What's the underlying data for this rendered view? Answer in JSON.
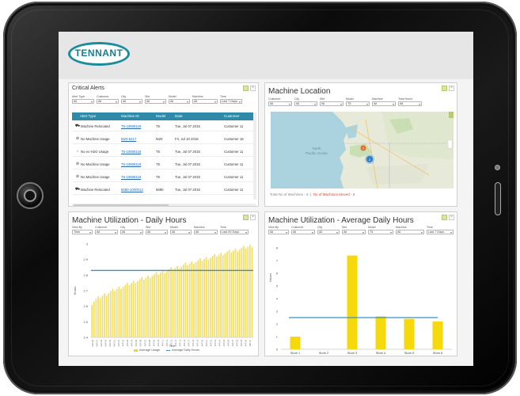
{
  "logo": {
    "text": "TENNANT"
  },
  "colors": {
    "brand": "#1a8c9c",
    "table_header": "#2e8aa7",
    "bar": "#f5d90a",
    "avg_line": "#3f8fbf",
    "link": "#2a6bb0",
    "alert_red": "#d24a3a"
  },
  "alerts": {
    "title": "Critical Alerts",
    "filters": [
      {
        "label": "Alert Type",
        "value": "All"
      },
      {
        "label": "Customer",
        "value": "All"
      },
      {
        "label": "City",
        "value": "All"
      },
      {
        "label": "Site",
        "value": "All"
      },
      {
        "label": "Model",
        "value": "All"
      },
      {
        "label": "Machine",
        "value": "All"
      },
      {
        "label": "Time",
        "value": "Last 7 Days"
      }
    ],
    "columns": [
      "Alert Type",
      "Machine ID",
      "Model",
      "Date",
      "Customer"
    ],
    "rows": [
      {
        "icon": "truck-icon",
        "glyph": "⛟",
        "type": "Machine Relocated",
        "id": "T5-10808119",
        "model": "T5",
        "date": "Tue, Jul 07 2015",
        "customer": "Customer 11"
      },
      {
        "icon": "no-usage-icon",
        "glyph": "⊘",
        "type": "No Machine Usage",
        "id": "M20-6417",
        "model": "M20",
        "date": "Fri, Jul 10 2015",
        "customer": "Customer 18"
      },
      {
        "icon": "arrow-down-icon",
        "glyph": "↓",
        "type": "No ec-H2O Usage",
        "id": "T5-10808119",
        "model": "T5",
        "date": "Tue, Jul 07 2015",
        "customer": "Customer 11"
      },
      {
        "icon": "no-usage-icon",
        "glyph": "⊘",
        "type": "No Machine Usage",
        "id": "T5-10808119",
        "model": "T5",
        "date": "Tue, Jul 07 2015",
        "customer": "Customer 11"
      },
      {
        "icon": "no-usage-icon",
        "glyph": "⊘",
        "type": "No Machine Usage",
        "id": "T5-10808119",
        "model": "T5",
        "date": "Tue, Jul 07 2015",
        "customer": "Customer 11"
      },
      {
        "icon": "truck-icon",
        "glyph": "⛟",
        "type": "Machine Relocated",
        "id": "5680-1000013",
        "model": "5680",
        "date": "Tue, Jul 07 2015",
        "customer": "Customer 11"
      }
    ]
  },
  "location": {
    "title": "Machine Location",
    "filters": [
      {
        "label": "Customer",
        "value": "All"
      },
      {
        "label": "City",
        "value": "All"
      },
      {
        "label": "Site",
        "value": "All"
      },
      {
        "label": "Model",
        "value": "T5"
      },
      {
        "label": "Machine",
        "value": "All"
      },
      {
        "label": "Total Hours",
        "value": "All"
      }
    ],
    "map_labels": {
      "ocean": "North\nPacific Ocean",
      "cluster_big": "3",
      "cluster_small": "5"
    },
    "footer_total": "Total No of Machines - 8",
    "footer_moved": "No of Machines Moved - 3"
  },
  "util_daily": {
    "title": "Machine Utilization - Daily Hours",
    "filters": [
      {
        "label": "View By",
        "value": "Time"
      },
      {
        "label": "Customer",
        "value": "All"
      },
      {
        "label": "City",
        "value": "All"
      },
      {
        "label": "Site",
        "value": "All"
      },
      {
        "label": "Model",
        "value": "All"
      },
      {
        "label": "Machine",
        "value": "All"
      },
      {
        "label": "Time",
        "value": "Last 90 Days"
      }
    ],
    "legend": [
      "Average Usage",
      "Average Daily Hours"
    ]
  },
  "util_avg": {
    "title": "Machine Utilization - Average Daily Hours",
    "filters": [
      {
        "label": "View By",
        "value": "All"
      },
      {
        "label": "Customer",
        "value": "All"
      },
      {
        "label": "City",
        "value": "All"
      },
      {
        "label": "Site",
        "value": "All"
      },
      {
        "label": "Model",
        "value": "T5"
      },
      {
        "label": "Machine",
        "value": "All"
      },
      {
        "label": "Time",
        "value": "Last 7 Days"
      }
    ]
  },
  "chart_data": [
    {
      "type": "bar",
      "title": "Machine Utilization - Daily Hours",
      "xlabel": "Time",
      "ylabel": "Hours",
      "ylim": [
        2.4,
        3.0
      ],
      "yticks": [
        2.4,
        2.5,
        2.6,
        2.7,
        2.8,
        2.9,
        3
      ],
      "x_tick_labels": [
        "MAR 26",
        "MAR 27",
        "MAR 28",
        "MAR 29",
        "MAR 30",
        "MAR 31",
        "APR 01",
        "APR 02",
        "APR 03",
        "APR 04",
        "APR 05",
        "APR 06",
        "APR 07",
        "APR 08",
        "APR 09",
        "APR 10",
        "APR 11",
        "APR 12",
        "APR 13",
        "APR 14",
        "APR 15",
        "APR 16",
        "APR 17",
        "APR 18",
        "APR 19",
        "APR 20",
        "APR 21",
        "APR 22",
        "APR 23",
        "APR 24",
        "APR 25",
        "APR 26",
        "APR 27",
        "APR 28",
        "APR 29",
        "APR 30",
        "MAY 01"
      ],
      "series": [
        {
          "name": "Average Usage",
          "start": 2.62,
          "end": 2.99,
          "count": 78
        },
        {
          "name": "Average Daily Hours",
          "value": 2.83
        }
      ]
    },
    {
      "type": "bar",
      "title": "Machine Utilization - Average Daily Hours",
      "ylabel": "Hours",
      "ylim": [
        0,
        8
      ],
      "yticks": [
        0,
        1,
        2,
        3,
        4,
        5,
        6,
        7,
        8
      ],
      "categories": [
        "Store 1",
        "Store 2",
        "Store 3",
        "Store 4",
        "Store 5",
        "Store 6"
      ],
      "values": [
        1.0,
        0,
        7.4,
        2.6,
        2.4,
        2.2
      ],
      "average_line": 2.5
    }
  ]
}
